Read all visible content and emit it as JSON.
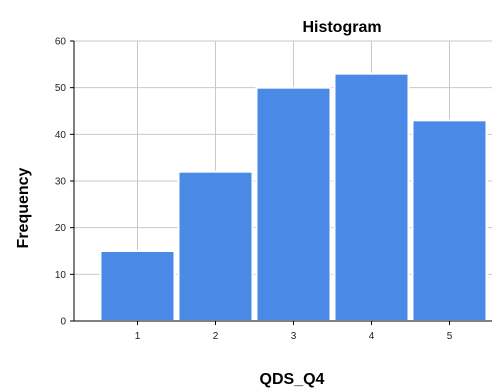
{
  "chart_data": {
    "type": "bar",
    "title": "Histogram",
    "xlabel": "QDS_Q4",
    "ylabel": "Frequency",
    "categories": [
      "1",
      "2",
      "3",
      "4",
      "5"
    ],
    "values": [
      15,
      32,
      50,
      53,
      43
    ],
    "ylim": [
      0,
      60
    ],
    "yticks": [
      0,
      10,
      20,
      30,
      40,
      50,
      60
    ],
    "grid": true,
    "colors": {
      "bar": "#4a8ae6",
      "bar_edge": "#ffffff",
      "grid": "#c8c8c8",
      "axis": "#000000",
      "background": "#ffffff"
    }
  }
}
